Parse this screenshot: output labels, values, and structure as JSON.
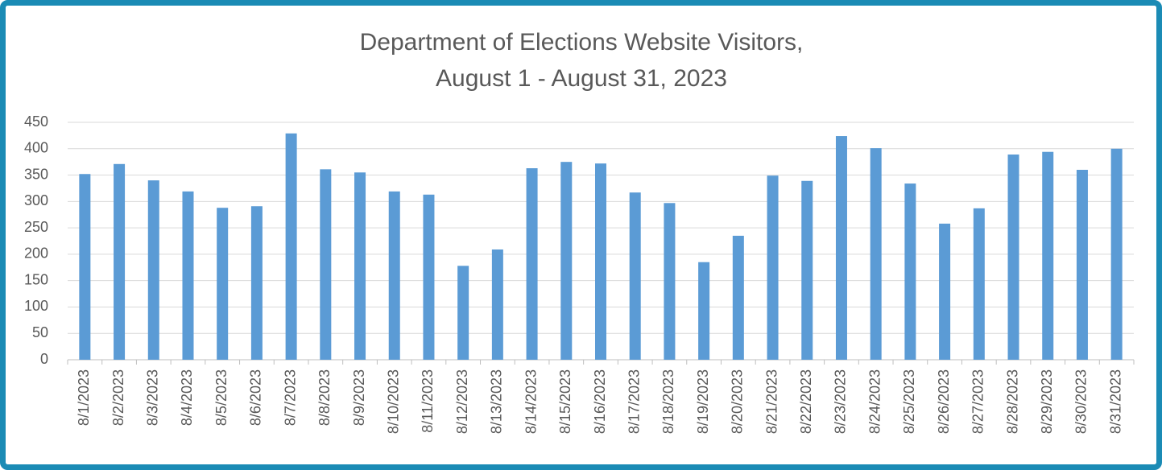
{
  "chart_data": {
    "type": "bar",
    "title": "Department of Elections Website Visitors,",
    "subtitle": "August 1 - August 31, 2023",
    "categories": [
      "8/1/2023",
      "8/2/2023",
      "8/3/2023",
      "8/4/2023",
      "8/5/2023",
      "8/6/2023",
      "8/7/2023",
      "8/8/2023",
      "8/9/2023",
      "8/10/2023",
      "8/11/2023",
      "8/12/2023",
      "8/13/2023",
      "8/14/2023",
      "8/15/2023",
      "8/16/2023",
      "8/17/2023",
      "8/18/2023",
      "8/19/2023",
      "8/20/2023",
      "8/21/2023",
      "8/22/2023",
      "8/23/2023",
      "8/24/2023",
      "8/25/2023",
      "8/26/2023",
      "8/27/2023",
      "8/28/2023",
      "8/29/2023",
      "8/30/2023",
      "8/31/2023"
    ],
    "values": [
      352,
      371,
      340,
      319,
      288,
      291,
      429,
      361,
      355,
      319,
      313,
      178,
      209,
      363,
      375,
      372,
      317,
      297,
      185,
      235,
      349,
      339,
      424,
      401,
      334,
      258,
      287,
      389,
      394,
      360,
      400
    ],
    "color": "#5b9bd5",
    "ylim": [
      0,
      450
    ],
    "yticks": [
      0,
      50,
      100,
      150,
      200,
      250,
      300,
      350,
      400,
      450
    ],
    "grid": true
  }
}
